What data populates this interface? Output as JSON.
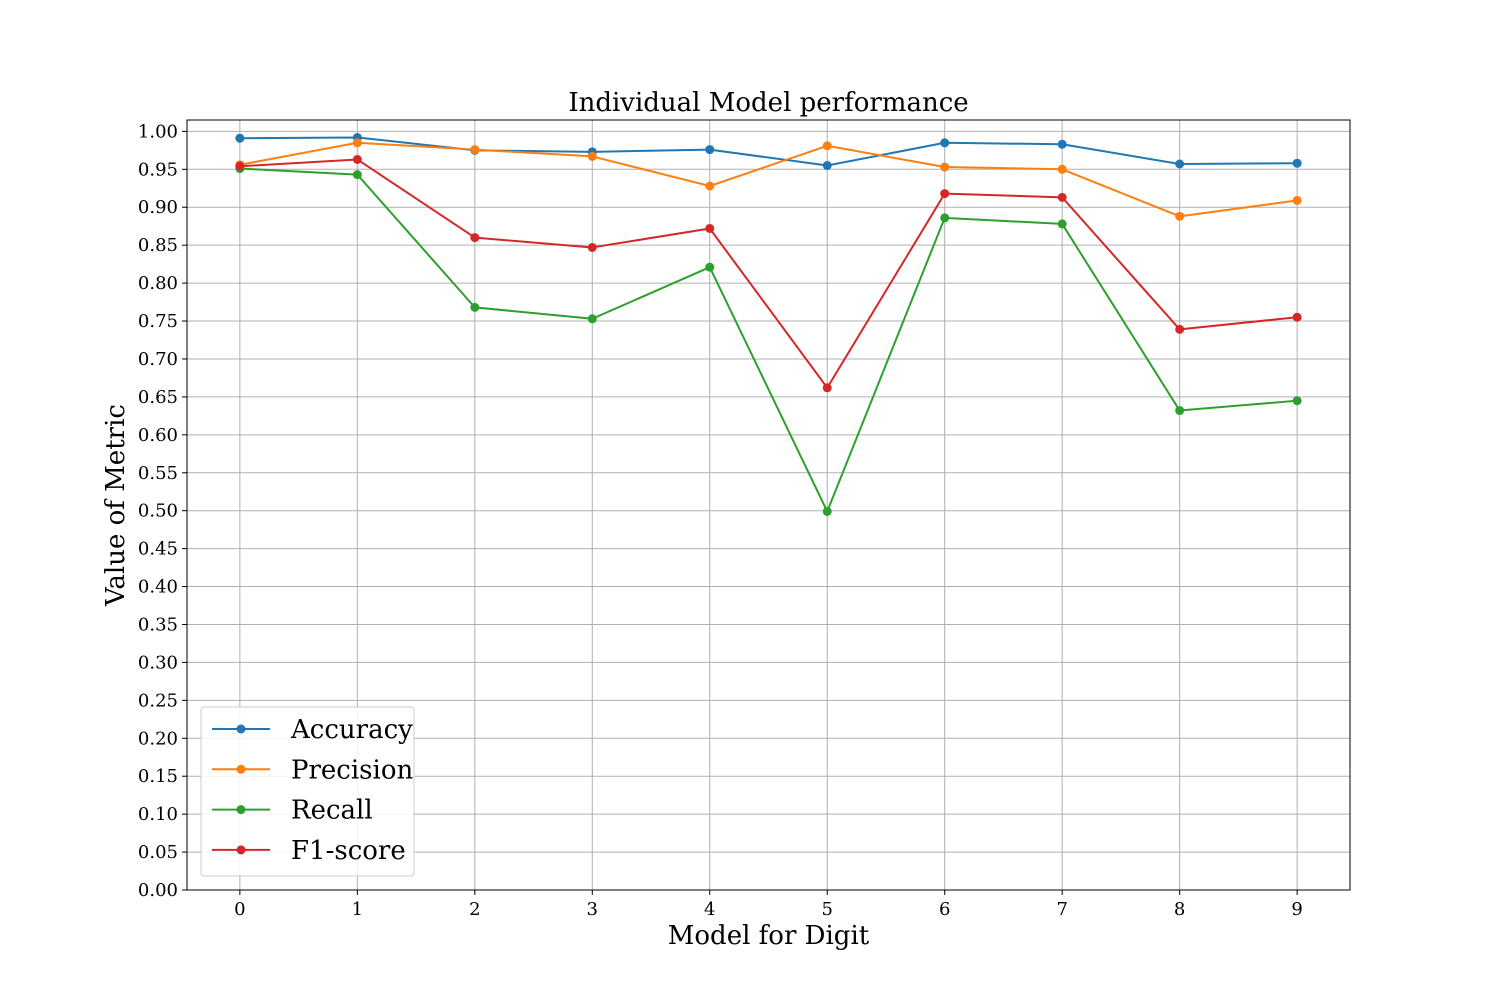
{
  "chart_data": {
    "type": "line",
    "title": "Individual Model performance",
    "xlabel": "Model for Digit",
    "ylabel": "Value of Metric",
    "x": [
      0,
      1,
      2,
      3,
      4,
      5,
      6,
      7,
      8,
      9
    ],
    "xlim": [
      -0.45,
      9.45
    ],
    "ylim": [
      0.0,
      1.015
    ],
    "yticks": [
      "0.00",
      "0.05",
      "0.10",
      "0.15",
      "0.20",
      "0.25",
      "0.30",
      "0.35",
      "0.40",
      "0.45",
      "0.50",
      "0.55",
      "0.60",
      "0.65",
      "0.70",
      "0.75",
      "0.80",
      "0.85",
      "0.90",
      "0.95",
      "1.00"
    ],
    "grid": true,
    "legend_position": "lower-left",
    "series": [
      {
        "name": "Accuracy",
        "color": "#1f77b4",
        "values": [
          0.991,
          0.992,
          0.975,
          0.973,
          0.976,
          0.955,
          0.985,
          0.983,
          0.957,
          0.958
        ]
      },
      {
        "name": "Precision",
        "color": "#ff7f0e",
        "values": [
          0.956,
          0.985,
          0.976,
          0.967,
          0.928,
          0.981,
          0.953,
          0.95,
          0.888,
          0.909
        ]
      },
      {
        "name": "Recall",
        "color": "#2ca02c",
        "values": [
          0.951,
          0.943,
          0.768,
          0.753,
          0.821,
          0.499,
          0.886,
          0.878,
          0.632,
          0.645
        ]
      },
      {
        "name": "F1-score",
        "color": "#d62728",
        "values": [
          0.954,
          0.963,
          0.86,
          0.847,
          0.872,
          0.662,
          0.918,
          0.913,
          0.739,
          0.755
        ]
      }
    ]
  }
}
